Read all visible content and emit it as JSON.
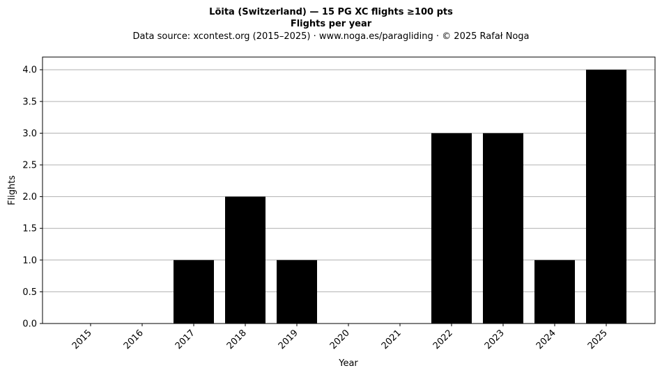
{
  "chart_data": {
    "type": "bar",
    "title": "Löita (Switzerland)  —  15 PG XC flights ≥100 pts",
    "subtitle": "Flights per year",
    "source_line": "Data source: xcontest.org (2015–2025)  ·  www.noga.es/paragliding  ·  © 2025 Rafał Noga",
    "xlabel": "Year",
    "ylabel": "Flights",
    "categories": [
      "2015",
      "2016",
      "2017",
      "2018",
      "2019",
      "2020",
      "2021",
      "2022",
      "2023",
      "2024",
      "2025"
    ],
    "values": [
      0,
      0,
      1,
      2,
      1,
      0,
      0,
      3,
      3,
      1,
      4
    ],
    "ylim": [
      0,
      4.2
    ],
    "yticks": [
      "0.0",
      "0.5",
      "1.0",
      "1.5",
      "2.0",
      "2.5",
      "3.0",
      "3.5",
      "4.0"
    ],
    "grid": "horizontal",
    "bar_color": "#000000",
    "grid_color": "#b0b0b0"
  }
}
